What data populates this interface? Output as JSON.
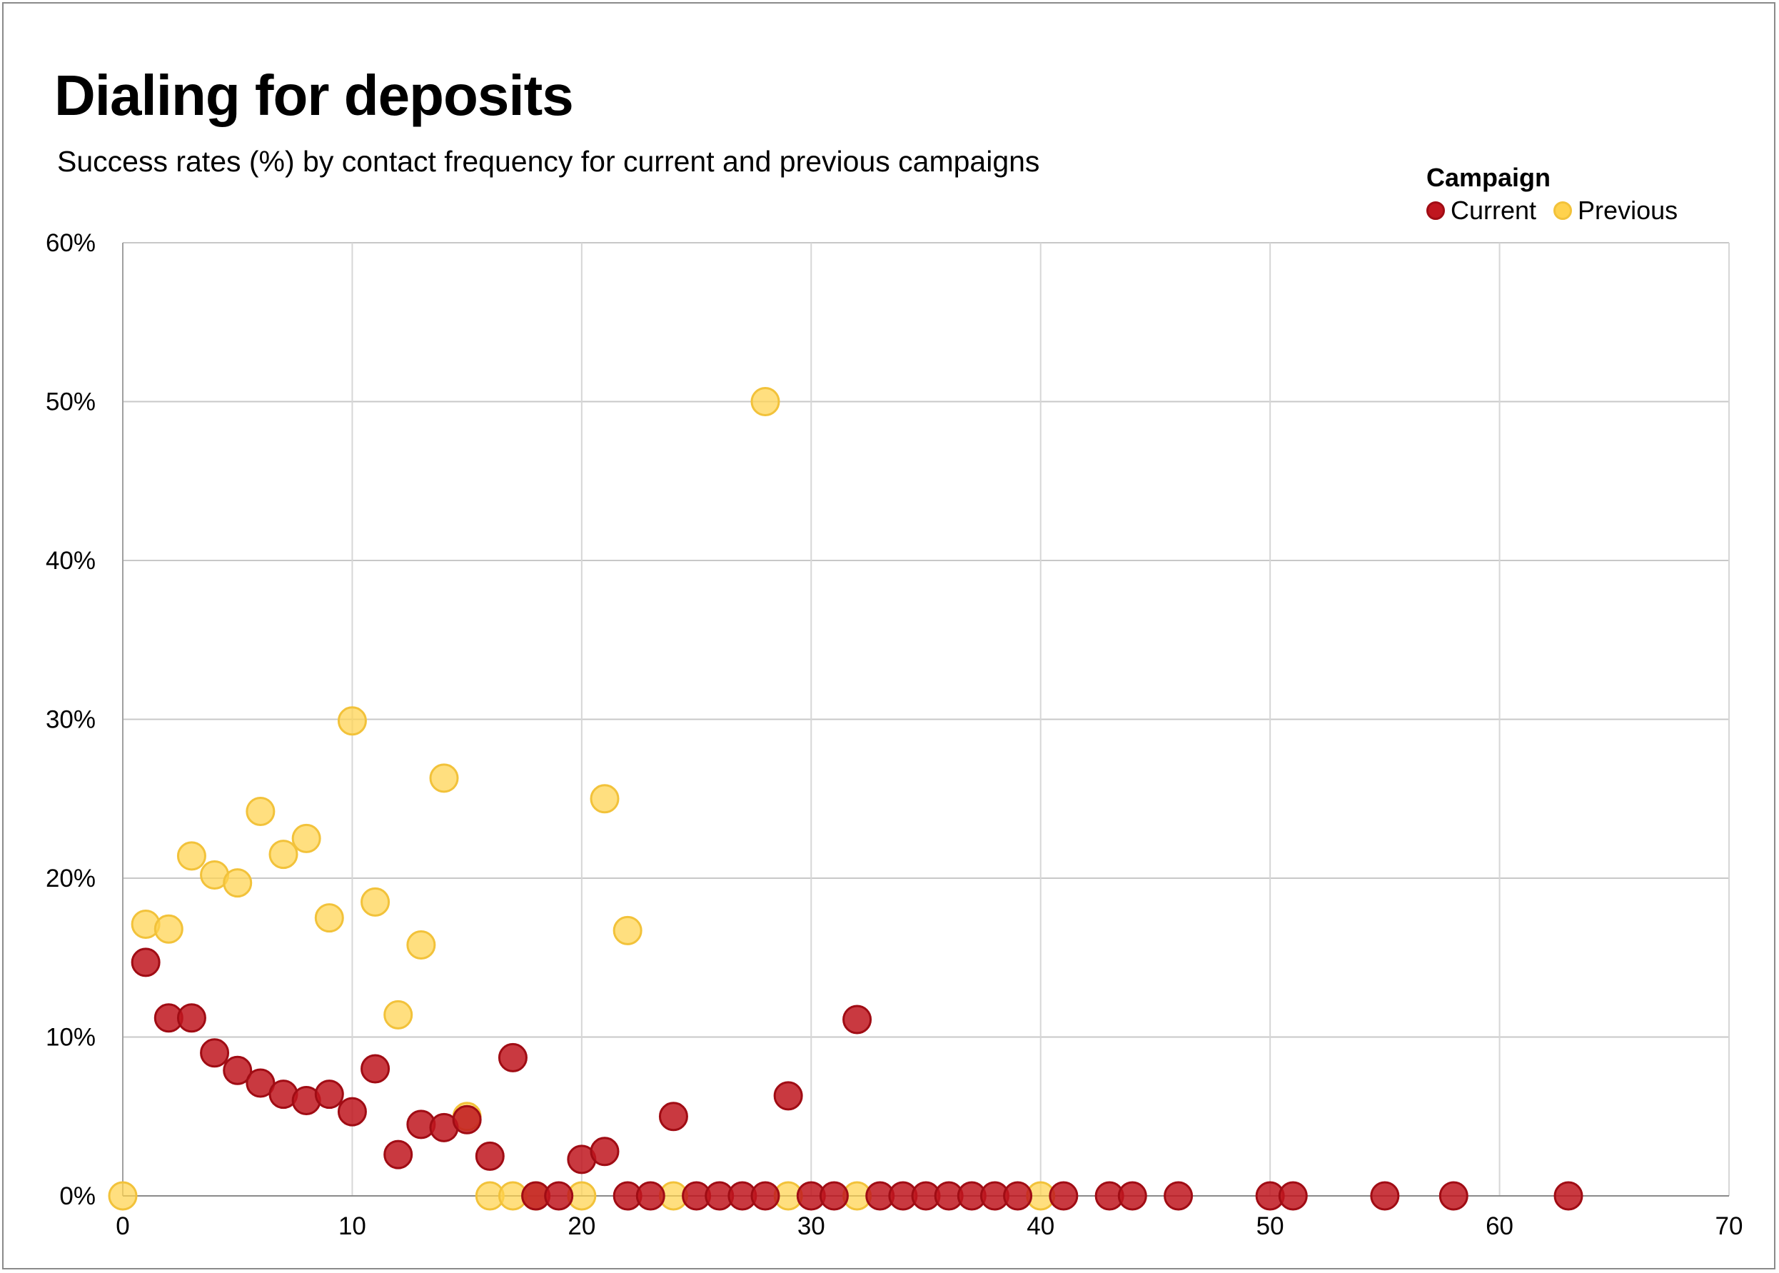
{
  "title": "Dialing for deposits",
  "subtitle": "Success rates (%) by contact frequency for current and previous campaigns",
  "legend": {
    "title": "Campaign",
    "items": [
      {
        "label": "Current",
        "color": "#c0161f"
      },
      {
        "label": "Previous",
        "color": "#ffd24d"
      }
    ]
  },
  "chart_data": {
    "type": "scatter",
    "title": "Dialing for deposits",
    "subtitle": "Success rates (%) by contact frequency for current and previous campaigns",
    "xlabel": "",
    "ylabel": "",
    "xlim": [
      0,
      70
    ],
    "ylim": [
      0,
      60
    ],
    "x_ticks": [
      0,
      10,
      20,
      30,
      40,
      50,
      60,
      70
    ],
    "y_ticks": [
      0,
      10,
      20,
      30,
      40,
      50,
      60
    ],
    "y_tick_labels": [
      "0%",
      "10%",
      "20%",
      "30%",
      "40%",
      "50%",
      "60%"
    ],
    "grid": true,
    "legend_position": "top-right",
    "series": [
      {
        "name": "Previous",
        "color": "#ffd24d",
        "stroke": "#f2c23a",
        "points": [
          [
            0,
            0
          ],
          [
            1,
            17.1
          ],
          [
            2,
            16.8
          ],
          [
            3,
            21.4
          ],
          [
            4,
            20.2
          ],
          [
            5,
            19.7
          ],
          [
            6,
            24.2
          ],
          [
            7,
            21.5
          ],
          [
            8,
            22.5
          ],
          [
            9,
            17.5
          ],
          [
            10,
            29.9
          ],
          [
            11,
            18.5
          ],
          [
            12,
            11.4
          ],
          [
            13,
            15.8
          ],
          [
            14,
            26.3
          ],
          [
            15,
            5.0
          ],
          [
            16,
            0
          ],
          [
            17,
            0
          ],
          [
            18,
            0
          ],
          [
            20,
            0
          ],
          [
            21,
            25.0
          ],
          [
            22,
            16.7
          ],
          [
            24,
            0
          ],
          [
            28,
            50.0
          ],
          [
            29,
            0
          ],
          [
            32,
            0
          ],
          [
            40,
            0
          ]
        ]
      },
      {
        "name": "Current",
        "color": "#c0161f",
        "stroke": "#a00c14",
        "points": [
          [
            1,
            14.7
          ],
          [
            2,
            11.2
          ],
          [
            3,
            11.2
          ],
          [
            4,
            9.0
          ],
          [
            5,
            7.9
          ],
          [
            6,
            7.1
          ],
          [
            7,
            6.4
          ],
          [
            8,
            6.0
          ],
          [
            9,
            6.4
          ],
          [
            10,
            5.3
          ],
          [
            11,
            8.0
          ],
          [
            12,
            2.6
          ],
          [
            13,
            4.5
          ],
          [
            14,
            4.3
          ],
          [
            15,
            4.8
          ],
          [
            16,
            2.5
          ],
          [
            17,
            8.7
          ],
          [
            18,
            0
          ],
          [
            19,
            0
          ],
          [
            20,
            2.3
          ],
          [
            21,
            2.8
          ],
          [
            22,
            0
          ],
          [
            23,
            0
          ],
          [
            24,
            5.0
          ],
          [
            25,
            0
          ],
          [
            26,
            0
          ],
          [
            27,
            0
          ],
          [
            28,
            0
          ],
          [
            29,
            6.3
          ],
          [
            30,
            0
          ],
          [
            31,
            0
          ],
          [
            32,
            11.1
          ],
          [
            33,
            0
          ],
          [
            34,
            0
          ],
          [
            35,
            0
          ],
          [
            36,
            0
          ],
          [
            37,
            0
          ],
          [
            38,
            0
          ],
          [
            39,
            0
          ],
          [
            41,
            0
          ],
          [
            43,
            0
          ],
          [
            44,
            0
          ],
          [
            46,
            0
          ],
          [
            50,
            0
          ],
          [
            51,
            0
          ],
          [
            55,
            0
          ],
          [
            58,
            0
          ],
          [
            63,
            0
          ]
        ]
      }
    ]
  }
}
